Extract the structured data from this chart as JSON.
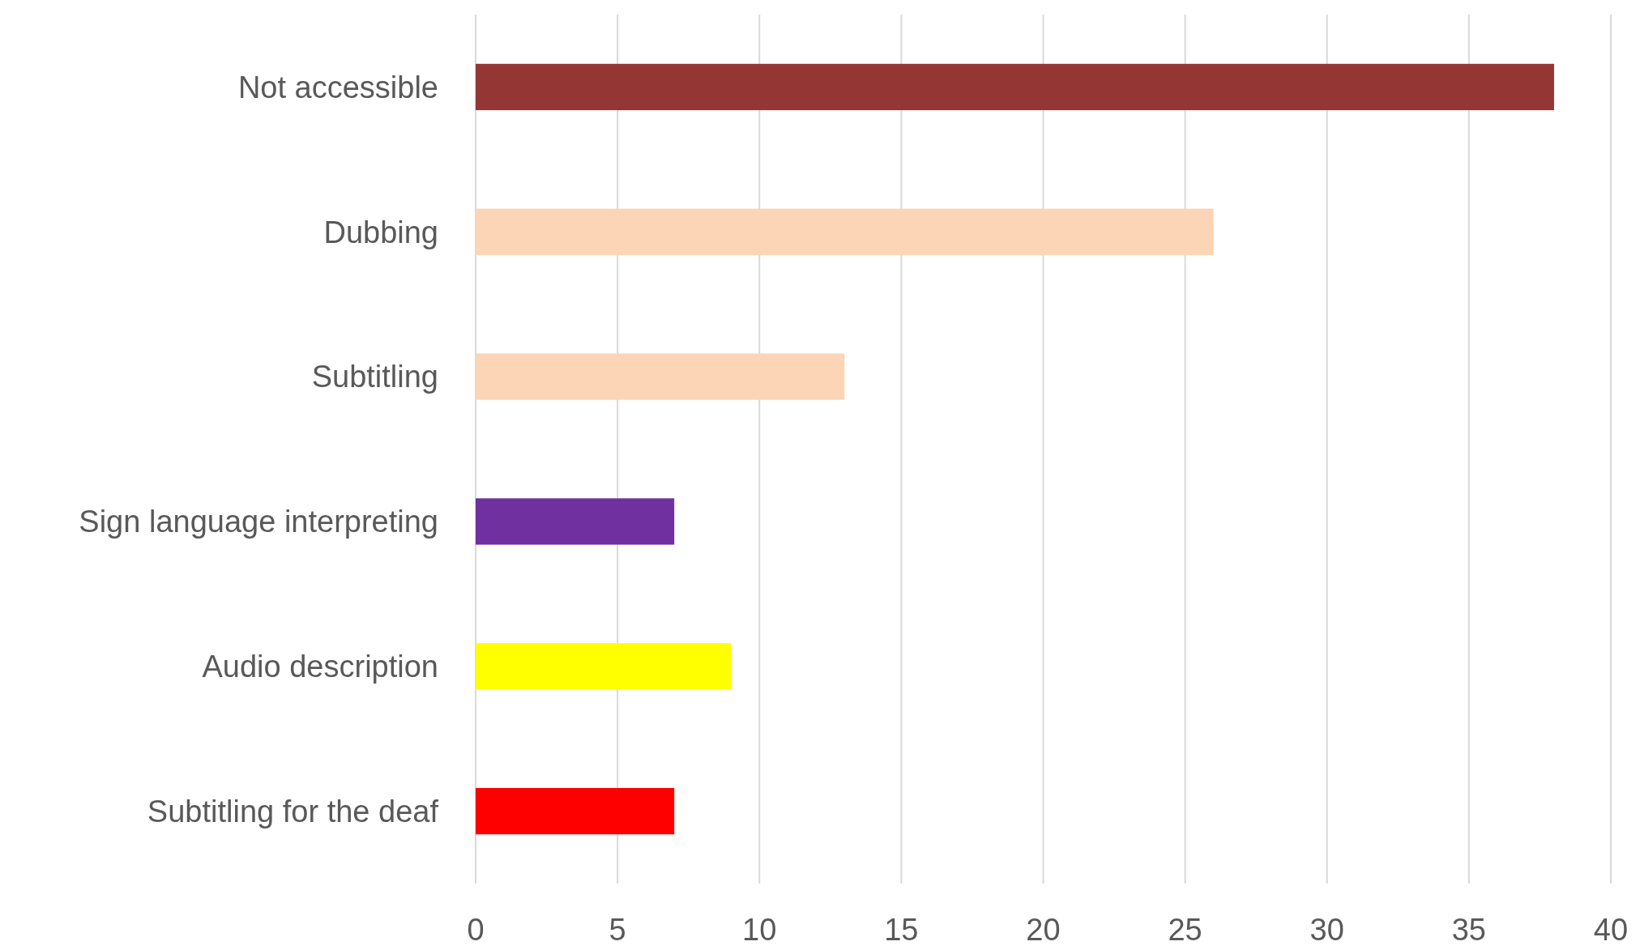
{
  "chart_data": {
    "type": "bar",
    "orientation": "horizontal",
    "categories": [
      "Not accessible",
      "Dubbing",
      "Subtitling",
      "Sign language interpreting",
      "Audio description",
      "Subtitling for the deaf"
    ],
    "values": [
      38,
      26,
      13,
      7,
      9,
      7
    ],
    "colors": [
      "#943634",
      "#fbd5b5",
      "#fbd5b5",
      "#7030a0",
      "#ffff00",
      "#ff0000"
    ],
    "xlim": [
      0,
      40
    ],
    "xticks": [
      0,
      5,
      10,
      15,
      20,
      25,
      30,
      35,
      40
    ],
    "grid": "x"
  }
}
